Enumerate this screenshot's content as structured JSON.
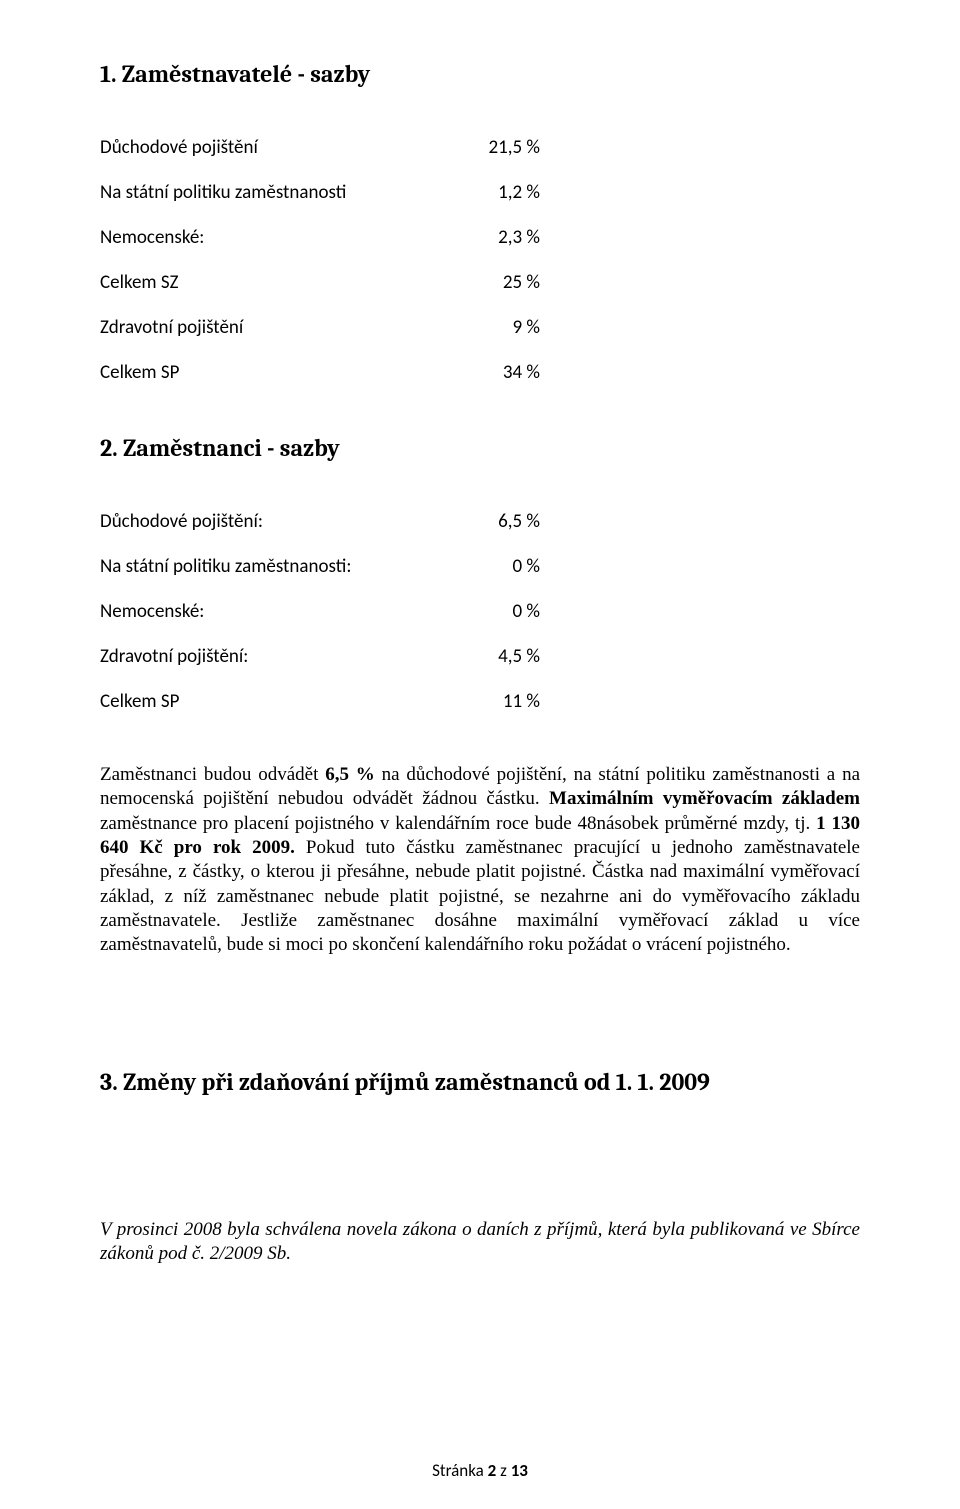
{
  "section1": {
    "heading": "1. Zaměstnavatelé - sazby",
    "rows": [
      {
        "label": "Důchodové pojištění",
        "value": "21,5 %"
      },
      {
        "label": "Na státní politiku zaměstnanosti",
        "value": "1,2 %"
      },
      {
        "label": "Nemocenské:",
        "value": "2,3 %"
      },
      {
        "label": "Celkem  SZ",
        "value": "25 %"
      },
      {
        "label": "Zdravotní pojištění",
        "value": "9 %"
      },
      {
        "label": "Celkem SP",
        "value": "34 %"
      }
    ]
  },
  "section2": {
    "heading": "2. Zaměstnanci - sazby",
    "rows": [
      {
        "label": "Důchodové pojištění:",
        "value": "6,5 %"
      },
      {
        "label": "Na státní politiku zaměstnanosti:",
        "value": "0 %"
      },
      {
        "label": "Nemocenské:",
        "value": "0 %"
      },
      {
        "label": "Zdravotní pojištění:",
        "value": "4,5 %"
      },
      {
        "label": "Celkem SP",
        "value": "11 %"
      }
    ]
  },
  "para": {
    "p1a": "Zaměstnanci budou odvádět ",
    "p1b": "6,5 %",
    "p1c": " na důchodové pojištění, na státní politiku zaměstnanosti a na nemocenská pojištění nebudou odvádět žádnou částku. ",
    "p1d": "Maximálním vyměřovacím základem",
    "p1e": " zaměstnance pro placení pojistného v kalendářním roce bude 48násobek průměrné mzdy, tj. ",
    "p1f": "1 130 640 Kč pro rok 2009.",
    "p1g": " Pokud tuto částku zaměstnanec pracující u jednoho zaměstnavatele přesáhne, z částky, o kterou ji přesáhne, nebude platit pojistné. Částka nad maximální vyměřovací základ, z níž zaměstnanec nebude platit pojistné, se nezahrne ani do vyměřovacího základu zaměstnavatele. Jestliže zaměstnanec dosáhne maximální vyměřovací základ u více zaměstnavatelů, bude si moci po skončení kalendářního roku požádat o vrácení pojistného."
  },
  "section3": {
    "heading": "3. Změny při zdaňování příjmů zaměstnanců od 1. 1. 2009",
    "body": "V prosinci 2008 byla schválena novela zákona o daních z příjmů, která byla publikovaná ve Sbírce zákonů pod č. 2/2009 Sb."
  },
  "footer": {
    "text_a": "Stránka ",
    "text_b": "2",
    "text_c": " z ",
    "text_d": "13"
  }
}
